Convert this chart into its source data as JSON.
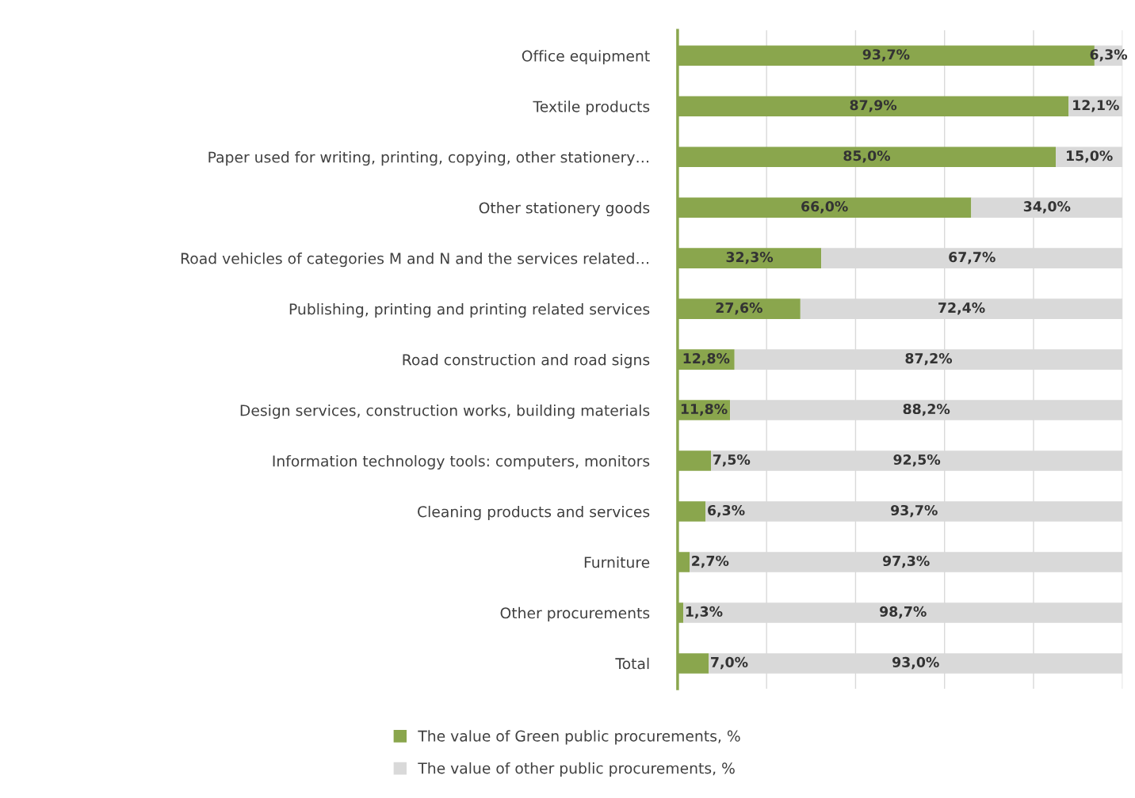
{
  "chart_data": {
    "type": "bar",
    "orientation": "horizontal",
    "stacked": true,
    "categories": [
      "Office equipment",
      "Textile products",
      "Paper used for writing, printing, copying, other stationery…",
      "Other stationery goods",
      "Road vehicles of categories M and N and the services related…",
      "Publishing, printing and printing related services",
      "Road construction and road signs",
      "Design services, construction works, building materials",
      "Information technology tools: computers, monitors",
      "Cleaning products and services",
      "Furniture",
      "Other procurements",
      "Total"
    ],
    "series": [
      {
        "name": "The value of Green public procurements, %",
        "color": "#8aa64d",
        "values": [
          93.7,
          87.9,
          85.0,
          66.0,
          32.3,
          27.6,
          12.8,
          11.8,
          7.5,
          6.3,
          2.7,
          1.3,
          7.0
        ],
        "value_labels": [
          "93,7%",
          "87,9%",
          "85,0%",
          "66,0%",
          "32,3%",
          "27,6%",
          "12,8%",
          "11,8%",
          "7,5%",
          "6,3%",
          "2,7%",
          "1,3%",
          "7,0%"
        ]
      },
      {
        "name": "The value of other public procurements, %",
        "color": "#d9d9d9",
        "values": [
          6.3,
          12.1,
          15.0,
          34.0,
          67.7,
          72.4,
          87.2,
          88.2,
          92.5,
          93.7,
          97.3,
          98.7,
          93.0
        ],
        "value_labels": [
          "6,3%",
          "12,1%",
          "15,0%",
          "34,0%",
          "67,7%",
          "72,4%",
          "87,2%",
          "88,2%",
          "92,5%",
          "93,7%",
          "97,3%",
          "98,7%",
          "93,0%"
        ]
      }
    ],
    "xlim": [
      0,
      100
    ],
    "xticks": [
      {
        "value": 0,
        "label": null
      },
      {
        "value": 20,
        "label": null
      },
      {
        "value": 40,
        "label": null
      },
      {
        "value": 60,
        "label": null
      },
      {
        "value": 80,
        "label": null
      },
      {
        "value": 100,
        "label": null
      }
    ],
    "tick_labels": "y",
    "grid": "x",
    "legend": "bottom"
  }
}
